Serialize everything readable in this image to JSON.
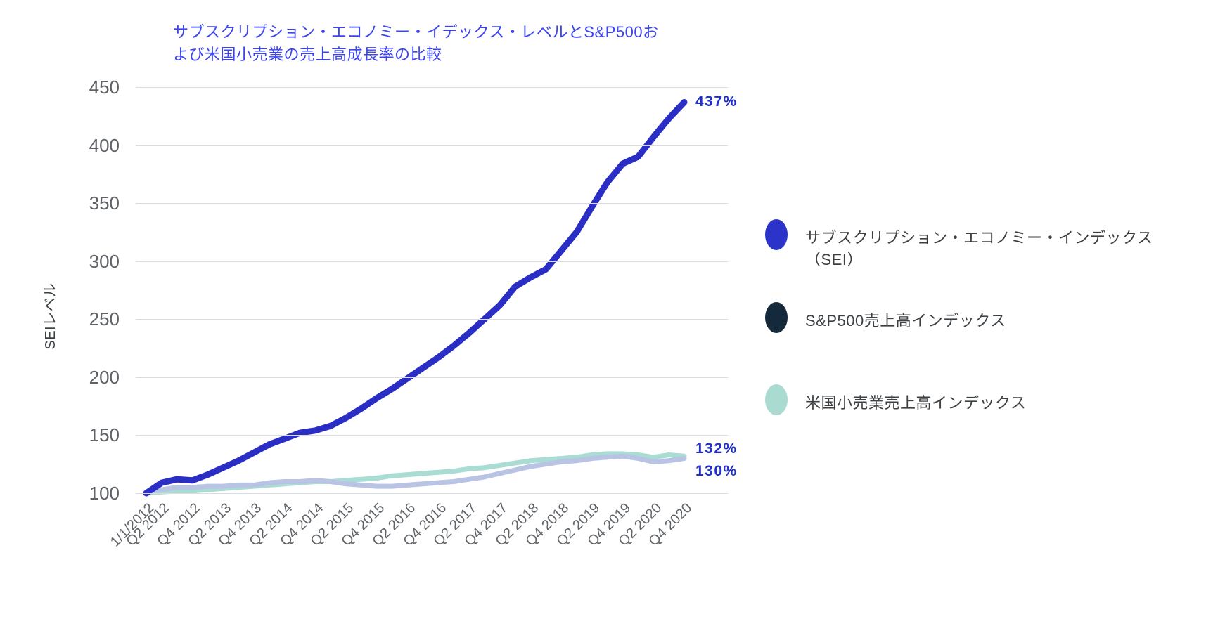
{
  "title": {
    "line1": "サブスクリプション・エコノミー・イデックス・レベルとS&P500お",
    "line2": "よび米国小売業の売上高成長率の比較"
  },
  "y_axis": {
    "title": "SEIレベル",
    "ticks": [
      450,
      400,
      350,
      300,
      250,
      200,
      150,
      100
    ]
  },
  "x_axis": {
    "ticks": [
      "1/1/2012",
      "Q2 2012",
      "Q4 2012",
      "Q2 2013",
      "Q4 2013",
      "Q2 2014",
      "Q4 2014",
      "Q2 2015",
      "Q4 2015",
      "Q2 2016",
      "Q4 2016",
      "Q2 2017",
      "Q4 2017",
      "Q2 2018",
      "Q4 2018",
      "Q2 2019",
      "Q4 2019",
      "Q2 2020",
      "Q4 2020"
    ]
  },
  "legend": [
    {
      "key": "sei",
      "color": "#2b33c9",
      "lines": [
        "サブスクリプション・エコノミー・インデックス",
        "（SEI）"
      ]
    },
    {
      "key": "sp500",
      "color": "#14293a",
      "lines": [
        "S&P500売上高インデックス"
      ]
    },
    {
      "key": "retail",
      "color": "#a9dbd0",
      "lines": [
        "米国小売業売上高インデックス"
      ]
    }
  ],
  "annotations": [
    {
      "series": "sei",
      "label": "437%"
    },
    {
      "series": "retail",
      "label": "132%"
    },
    {
      "series": "sp500",
      "label": "130%"
    }
  ],
  "chart_data": {
    "type": "line",
    "title": "サブスクリプション・エコノミー・イデックス・レベルとS&P500および米国小売業の売上高成長率の比較",
    "ylabel": "SEIレベル",
    "ylim": [
      100,
      450
    ],
    "grid": "horizontal",
    "legend_position": "right",
    "x": [
      "1/1/2012",
      "Q2 2012",
      "Q3 2012",
      "Q4 2012",
      "Q1 2013",
      "Q2 2013",
      "Q3 2013",
      "Q4 2013",
      "Q1 2014",
      "Q2 2014",
      "Q3 2014",
      "Q4 2014",
      "Q1 2015",
      "Q2 2015",
      "Q3 2015",
      "Q4 2015",
      "Q1 2016",
      "Q2 2016",
      "Q3 2016",
      "Q4 2016",
      "Q1 2017",
      "Q2 2017",
      "Q3 2017",
      "Q4 2017",
      "Q1 2018",
      "Q2 2018",
      "Q3 2018",
      "Q4 2018",
      "Q1 2019",
      "Q2 2019",
      "Q3 2019",
      "Q4 2019",
      "Q1 2020",
      "Q2 2020",
      "Q3 2020",
      "Q4 2020"
    ],
    "series": [
      {
        "key": "sei",
        "name": "サブスクリプション・エコノミー・インデックス（SEI）",
        "color": "#2a2ec4",
        "stroke_width": 9,
        "end_label": "437%",
        "values": [
          100,
          109,
          112,
          111,
          116,
          122,
          128,
          135,
          142,
          147,
          152,
          154,
          158,
          165,
          173,
          182,
          190,
          199,
          208,
          217,
          227,
          238,
          250,
          262,
          278,
          286,
          293,
          309,
          325,
          347,
          368,
          384,
          390,
          407,
          423,
          437
        ]
      },
      {
        "key": "sp500",
        "name": "S&P500売上高インデックス",
        "color": "#b9c3e4",
        "stroke_width": 7,
        "end_label": "130%",
        "values": [
          100,
          103,
          105,
          105,
          106,
          106,
          107,
          107,
          109,
          110,
          110,
          111,
          110,
          108,
          107,
          106,
          106,
          107,
          108,
          109,
          110,
          112,
          114,
          117,
          120,
          123,
          125,
          127,
          128,
          130,
          131,
          132,
          130,
          127,
          128,
          130
        ]
      },
      {
        "key": "retail",
        "name": "米国小売業売上高インデックス",
        "color": "#a9dcd2",
        "stroke_width": 7,
        "end_label": "132%",
        "values": [
          100,
          101,
          102,
          102,
          103,
          104,
          105,
          106,
          107,
          108,
          109,
          110,
          110,
          111,
          112,
          113,
          115,
          116,
          117,
          118,
          119,
          121,
          122,
          124,
          126,
          128,
          129,
          130,
          131,
          133,
          134,
          134,
          133,
          131,
          133,
          132
        ]
      }
    ]
  }
}
